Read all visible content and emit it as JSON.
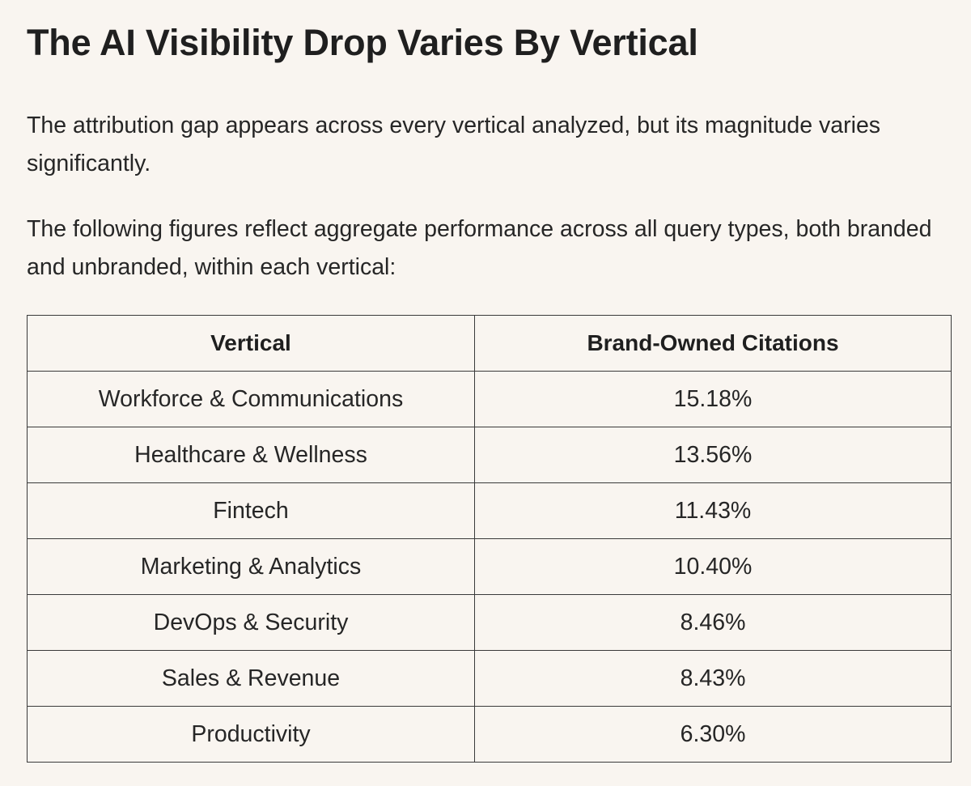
{
  "heading": "The AI Visibility Drop Varies By Vertical",
  "paragraphs": [
    "The attribution gap appears across every vertical analyzed, but its magnitude varies significantly.",
    "The following figures reflect aggregate performance across all query types, both branded and unbranded, within each vertical:"
  ],
  "table": {
    "headers": [
      "Vertical",
      "Brand-Owned Citations"
    ],
    "rows": [
      {
        "vertical": "Workforce & Communications",
        "citations": "15.18%"
      },
      {
        "vertical": "Healthcare & Wellness",
        "citations": "13.56%"
      },
      {
        "vertical": "Fintech",
        "citations": "11.43%"
      },
      {
        "vertical": "Marketing & Analytics",
        "citations": "10.40%"
      },
      {
        "vertical": "DevOps & Security",
        "citations": "8.46%"
      },
      {
        "vertical": "Sales & Revenue",
        "citations": "8.43%"
      },
      {
        "vertical": "Productivity",
        "citations": "6.30%"
      }
    ]
  }
}
